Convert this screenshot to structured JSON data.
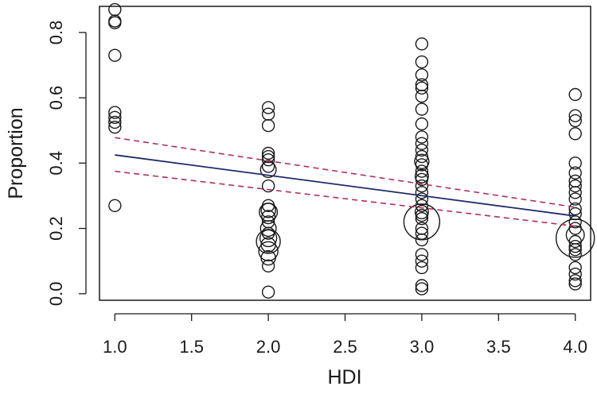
{
  "chart_data": {
    "type": "scatter",
    "xlabel": "HDI",
    "ylabel": "Proportion",
    "xlim": [
      0.9,
      4.1
    ],
    "ylim": [
      -0.02,
      0.88
    ],
    "xticks": [
      "1.0",
      "1.5",
      "2.0",
      "2.5",
      "3.0",
      "3.5",
      "4.0"
    ],
    "yticks": [
      "0.0",
      "0.2",
      "0.4",
      "0.6",
      "0.8"
    ],
    "grid": false,
    "legend": "none",
    "colors": {
      "points": "#1a1a1a",
      "fit": "#1f2a6b",
      "ci": "#b0305a"
    },
    "points": [
      {
        "x": 1,
        "y": 0.87,
        "s": 1
      },
      {
        "x": 1,
        "y": 0.835,
        "s": 1
      },
      {
        "x": 1,
        "y": 0.83,
        "s": 1
      },
      {
        "x": 1,
        "y": 0.73,
        "s": 1
      },
      {
        "x": 1,
        "y": 0.555,
        "s": 1
      },
      {
        "x": 1,
        "y": 0.54,
        "s": 1
      },
      {
        "x": 1,
        "y": 0.525,
        "s": 1
      },
      {
        "x": 1,
        "y": 0.51,
        "s": 1
      },
      {
        "x": 1,
        "y": 0.27,
        "s": 1
      },
      {
        "x": 2,
        "y": 0.57,
        "s": 1
      },
      {
        "x": 2,
        "y": 0.55,
        "s": 1
      },
      {
        "x": 2,
        "y": 0.515,
        "s": 1
      },
      {
        "x": 2,
        "y": 0.43,
        "s": 1
      },
      {
        "x": 2,
        "y": 0.42,
        "s": 1
      },
      {
        "x": 2,
        "y": 0.41,
        "s": 1
      },
      {
        "x": 2,
        "y": 0.39,
        "s": 1
      },
      {
        "x": 2,
        "y": 0.38,
        "s": 1.3
      },
      {
        "x": 2,
        "y": 0.33,
        "s": 1
      },
      {
        "x": 2,
        "y": 0.27,
        "s": 1
      },
      {
        "x": 2,
        "y": 0.255,
        "s": 1.2
      },
      {
        "x": 2,
        "y": 0.25,
        "s": 1.5
      },
      {
        "x": 2,
        "y": 0.235,
        "s": 1.1
      },
      {
        "x": 2,
        "y": 0.22,
        "s": 1
      },
      {
        "x": 2,
        "y": 0.2,
        "s": 1.3
      },
      {
        "x": 2,
        "y": 0.185,
        "s": 1
      },
      {
        "x": 2,
        "y": 0.17,
        "s": 1.4
      },
      {
        "x": 2,
        "y": 0.16,
        "s": 2.0
      },
      {
        "x": 2,
        "y": 0.15,
        "s": 1.2
      },
      {
        "x": 2,
        "y": 0.13,
        "s": 1.6
      },
      {
        "x": 2,
        "y": 0.11,
        "s": 1.2
      },
      {
        "x": 2,
        "y": 0.085,
        "s": 1
      },
      {
        "x": 2,
        "y": 0.005,
        "s": 1
      },
      {
        "x": 3,
        "y": 0.765,
        "s": 1
      },
      {
        "x": 3,
        "y": 0.71,
        "s": 1
      },
      {
        "x": 3,
        "y": 0.67,
        "s": 1
      },
      {
        "x": 3,
        "y": 0.64,
        "s": 1
      },
      {
        "x": 3,
        "y": 0.63,
        "s": 1
      },
      {
        "x": 3,
        "y": 0.605,
        "s": 1
      },
      {
        "x": 3,
        "y": 0.565,
        "s": 1
      },
      {
        "x": 3,
        "y": 0.52,
        "s": 1
      },
      {
        "x": 3,
        "y": 0.48,
        "s": 1
      },
      {
        "x": 3,
        "y": 0.46,
        "s": 1
      },
      {
        "x": 3,
        "y": 0.44,
        "s": 1
      },
      {
        "x": 3,
        "y": 0.42,
        "s": 1
      },
      {
        "x": 3,
        "y": 0.405,
        "s": 1.2
      },
      {
        "x": 3,
        "y": 0.395,
        "s": 1
      },
      {
        "x": 3,
        "y": 0.375,
        "s": 1
      },
      {
        "x": 3,
        "y": 0.36,
        "s": 1.1
      },
      {
        "x": 3,
        "y": 0.35,
        "s": 1
      },
      {
        "x": 3,
        "y": 0.33,
        "s": 1
      },
      {
        "x": 3,
        "y": 0.31,
        "s": 1
      },
      {
        "x": 3,
        "y": 0.29,
        "s": 1
      },
      {
        "x": 3,
        "y": 0.27,
        "s": 1
      },
      {
        "x": 3,
        "y": 0.25,
        "s": 1.1
      },
      {
        "x": 3,
        "y": 0.24,
        "s": 1
      },
      {
        "x": 3,
        "y": 0.23,
        "s": 1
      },
      {
        "x": 3,
        "y": 0.22,
        "s": 3.0
      },
      {
        "x": 3,
        "y": 0.2,
        "s": 1
      },
      {
        "x": 3,
        "y": 0.185,
        "s": 1
      },
      {
        "x": 3,
        "y": 0.165,
        "s": 1
      },
      {
        "x": 3,
        "y": 0.12,
        "s": 1
      },
      {
        "x": 3,
        "y": 0.1,
        "s": 1
      },
      {
        "x": 3,
        "y": 0.08,
        "s": 1
      },
      {
        "x": 3,
        "y": 0.025,
        "s": 1
      },
      {
        "x": 3,
        "y": 0.015,
        "s": 1
      },
      {
        "x": 4,
        "y": 0.61,
        "s": 1
      },
      {
        "x": 4,
        "y": 0.545,
        "s": 1
      },
      {
        "x": 4,
        "y": 0.53,
        "s": 1
      },
      {
        "x": 4,
        "y": 0.49,
        "s": 1
      },
      {
        "x": 4,
        "y": 0.4,
        "s": 1
      },
      {
        "x": 4,
        "y": 0.37,
        "s": 1
      },
      {
        "x": 4,
        "y": 0.345,
        "s": 1
      },
      {
        "x": 4,
        "y": 0.33,
        "s": 1
      },
      {
        "x": 4,
        "y": 0.31,
        "s": 1
      },
      {
        "x": 4,
        "y": 0.29,
        "s": 1
      },
      {
        "x": 4,
        "y": 0.26,
        "s": 1
      },
      {
        "x": 4,
        "y": 0.245,
        "s": 1
      },
      {
        "x": 4,
        "y": 0.22,
        "s": 1
      },
      {
        "x": 4,
        "y": 0.2,
        "s": 1
      },
      {
        "x": 4,
        "y": 0.18,
        "s": 1.5
      },
      {
        "x": 4,
        "y": 0.17,
        "s": 3.2
      },
      {
        "x": 4,
        "y": 0.16,
        "s": 1
      },
      {
        "x": 4,
        "y": 0.145,
        "s": 1
      },
      {
        "x": 4,
        "y": 0.135,
        "s": 1
      },
      {
        "x": 4,
        "y": 0.12,
        "s": 1
      },
      {
        "x": 4,
        "y": 0.08,
        "s": 1
      },
      {
        "x": 4,
        "y": 0.06,
        "s": 1
      },
      {
        "x": 4,
        "y": 0.04,
        "s": 1
      },
      {
        "x": 4,
        "y": 0.03,
        "s": 1
      }
    ],
    "fit_line": {
      "x": [
        1.0,
        4.0
      ],
      "y": [
        0.425,
        0.238
      ]
    },
    "ci_upper": {
      "x": [
        1.0,
        4.0
      ],
      "y": [
        0.478,
        0.265
      ]
    },
    "ci_lower": {
      "x": [
        1.0,
        4.0
      ],
      "y": [
        0.375,
        0.207
      ]
    }
  }
}
